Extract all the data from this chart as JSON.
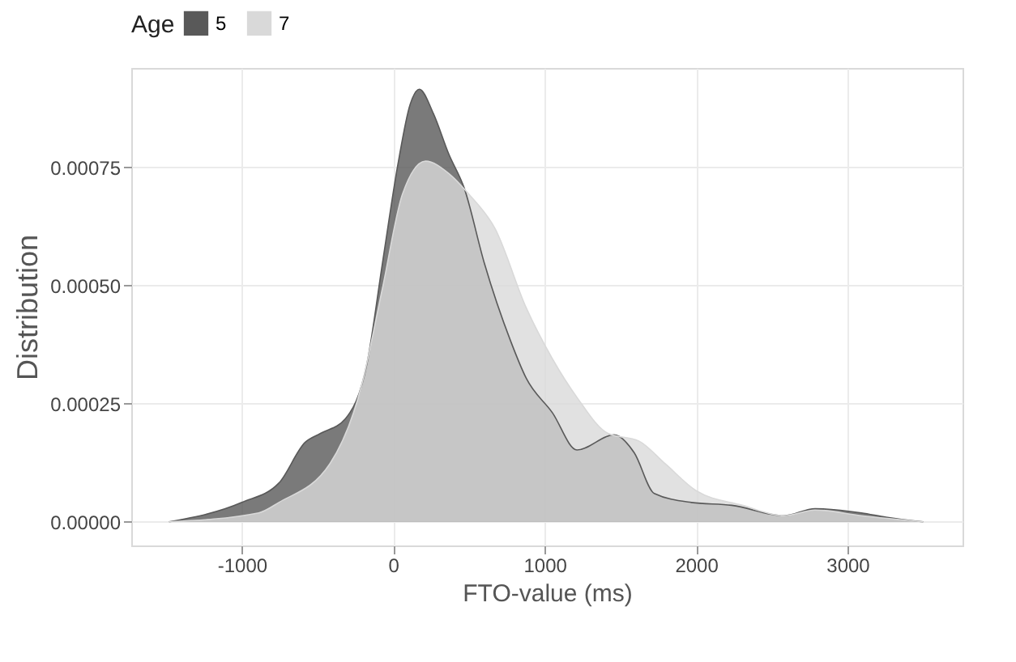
{
  "chart_data": {
    "type": "area",
    "xlabel": "FTO-value (ms)",
    "ylabel": "Distribution",
    "legend_title": "Age",
    "legend": "top",
    "grid": true,
    "xlim": [
      -1730,
      3760
    ],
    "xticks": [
      -1000,
      0,
      1000,
      2000,
      3000
    ],
    "ylim": [
      -5e-05,
      0.00096
    ],
    "yticks": [
      {
        "value": 0,
        "label": "0.00000"
      },
      {
        "value": 0.00025,
        "label": "0.00025"
      },
      {
        "value": 0.0005,
        "label": "0.00050"
      },
      {
        "value": 0.00075,
        "label": "0.00075"
      }
    ],
    "series": [
      {
        "name": "5",
        "color": "#595959",
        "x": [
          -1480,
          -1000,
          -755,
          -582,
          -480,
          -316,
          -173,
          -71,
          31,
          112,
          173,
          265,
          367,
          469,
          602,
          776,
          878,
          1051,
          1214,
          1459,
          1592,
          1724,
          1969,
          2235,
          2582,
          2786,
          3092,
          3255,
          3500
        ],
        "values": [
          0,
          4.1e-05,
          8.2e-05,
          0.000168,
          0.000187,
          0.000218,
          0.000335,
          0.000547,
          0.000756,
          0.000883,
          0.000915,
          0.000864,
          0.000778,
          0.000706,
          0.000547,
          0.000382,
          0.000304,
          0.000231,
          0.000152,
          0.000184,
          0.000146,
          6e-05,
          4.1e-05,
          3.5e-05,
          1.3e-05,
          2.8e-05,
          1.9e-05,
          1e-05,
          0
        ]
      },
      {
        "name": "7",
        "color": "#d9d9d9",
        "x": [
          -1480,
          -888,
          -755,
          -418,
          -214,
          -71,
          61,
          214,
          367,
          500,
          673,
          878,
          1051,
          1214,
          1418,
          1622,
          1796,
          2000,
          2306,
          2582,
          2786,
          3092,
          3500
        ],
        "values": [
          0,
          1.9e-05,
          4.1e-05,
          0.000123,
          0.000282,
          0.000494,
          0.000693,
          0.000763,
          0.000737,
          0.000693,
          0.00062,
          0.000453,
          0.000345,
          0.000263,
          0.000187,
          0.000171,
          0.000123,
          6.6e-05,
          3.5e-05,
          1.3e-05,
          2.5e-05,
          1.3e-05,
          0
        ]
      }
    ]
  }
}
